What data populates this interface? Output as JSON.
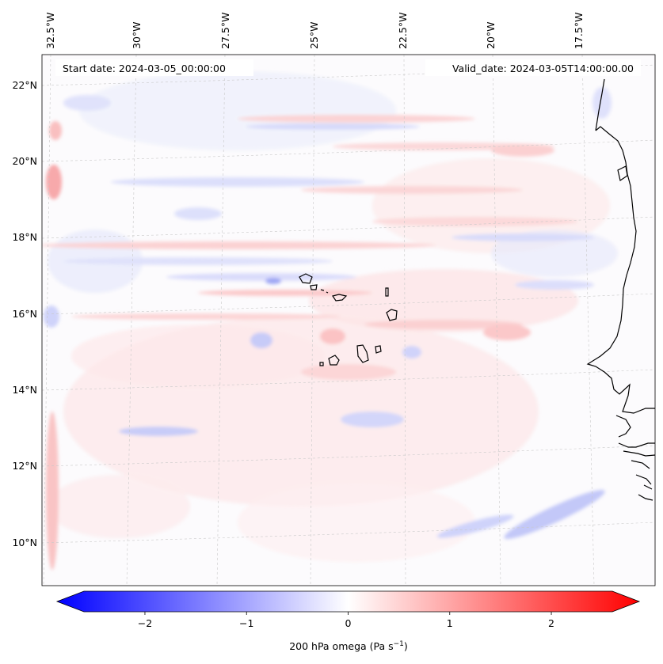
{
  "map": {
    "header": {
      "start_date": "Start date: 2024-03-05_00:00:00",
      "valid_date": "Valid_date: 2024-03-05T14:00:00.00"
    },
    "top_lon_labels": [
      "32.5°W",
      "30°W",
      "27.5°W",
      "25°W",
      "22.5°W",
      "20°W",
      "17.5°W"
    ],
    "left_lat_labels": [
      "22°N",
      "20°N",
      "18°N",
      "16°N",
      "14°N",
      "12°N",
      "10°N"
    ],
    "colorbar": {
      "ticks": [
        "−2",
        "−1",
        "0",
        "1",
        "2"
      ],
      "tick_values": [
        -2,
        -1,
        0,
        1,
        2
      ],
      "range": [
        -2.6,
        2.6
      ],
      "label_prefix": "200 hPa omega (Pa s",
      "label_exp": "−1",
      "label_suffix": ")",
      "low_color": "#0000ff",
      "mid_color": "#ffffff",
      "high_color": "#ff0000"
    }
  }
}
